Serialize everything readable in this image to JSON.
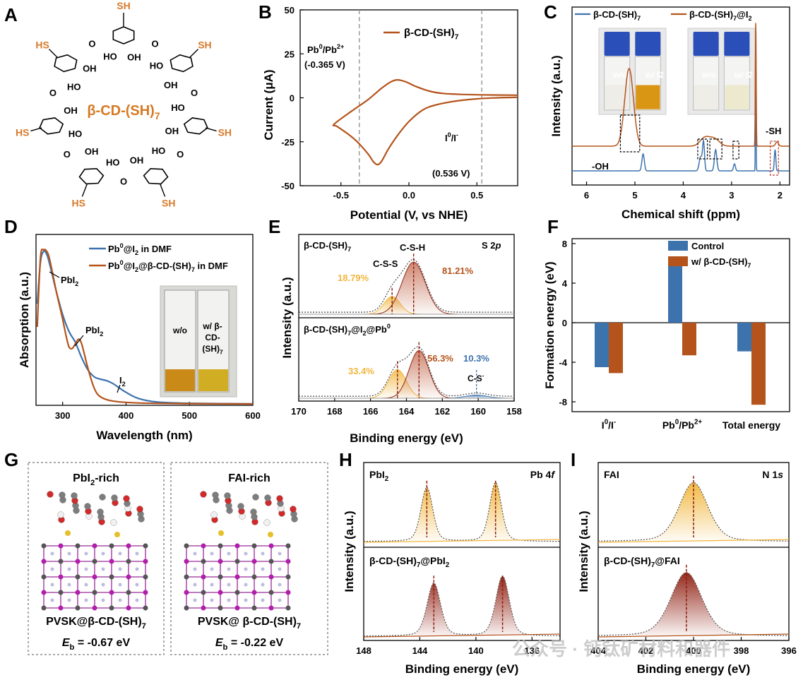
{
  "colors": {
    "orange": "#b4541c",
    "blue": "#3d73ad",
    "gold": "#f1b63d",
    "darkred": "#8e1d0f",
    "grey_dashed": "#9b9b9b",
    "sh_label": "#d97a2b",
    "mol_title": "#d77a24"
  },
  "panel_labels": [
    "A",
    "B",
    "C",
    "D",
    "E",
    "F",
    "G",
    "H",
    "I"
  ],
  "panelA": {
    "title": "β-CD-(SH)7",
    "title_main": "β-CD-(SH)",
    "title_sub": "7",
    "sh": "SH",
    "hs": "HS",
    "oh": "OH",
    "ho": "HO",
    "o": "O"
  },
  "chart_data": [
    {
      "id": "B",
      "type": "line",
      "xlabel": "Potential (V, vs NHE)",
      "ylabel": "Current (μA)",
      "xlim": [
        -0.8,
        0.8
      ],
      "ylim": [
        -50,
        50
      ],
      "xticks": [
        -0.5,
        0.0,
        0.5
      ],
      "yticks": [
        -50,
        -25,
        0,
        25,
        50
      ],
      "series": [
        {
          "name": "β-CD-(SH)7",
          "name_main": "β-CD-(SH)",
          "name_sub": "7",
          "color": "orange",
          "points": [
            [
              0.8,
              1.5
            ],
            [
              0.6,
              1.6
            ],
            [
              0.4,
              1.9
            ],
            [
              0.25,
              2.5
            ],
            [
              0.15,
              3.8
            ],
            [
              0.05,
              6.5
            ],
            [
              -0.02,
              9.0
            ],
            [
              -0.08,
              10.2
            ],
            [
              -0.13,
              9.2
            ],
            [
              -0.2,
              5.5
            ],
            [
              -0.3,
              -1.0
            ],
            [
              -0.42,
              -7.5
            ],
            [
              -0.55,
              -15.0
            ],
            [
              -0.53,
              -16.2
            ],
            [
              -0.45,
              -20.5
            ],
            [
              -0.38,
              -25.0
            ],
            [
              -0.3,
              -32.0
            ],
            [
              -0.26,
              -36.5
            ],
            [
              -0.23,
              -38.0
            ],
            [
              -0.2,
              -36.0
            ],
            [
              -0.15,
              -29.0
            ],
            [
              -0.08,
              -21.0
            ],
            [
              0.0,
              -13.5
            ],
            [
              0.1,
              -7.0
            ],
            [
              0.2,
              -4.0
            ],
            [
              0.35,
              -1.8
            ],
            [
              0.5,
              -0.6
            ],
            [
              0.65,
              0.0
            ],
            [
              0.8,
              0.3
            ]
          ]
        }
      ],
      "vlines": [
        -0.365,
        0.536
      ],
      "annotations": {
        "pb_line1": "Pb0/Pb2+",
        "pb_line2": "(-0.365 V)",
        "i_line1": "I0/I-",
        "i_line2": "(0.536 V)",
        "pb_base1": "Pb",
        "pb_sup1": "0",
        "pb_mid": "/Pb",
        "pb_sup2": "2+",
        "i_base1": "I",
        "i_sup1": "0",
        "i_mid": "/I",
        "i_sup2": "-"
      }
    },
    {
      "id": "C",
      "type": "line",
      "xlabel": "Chemical shift (ppm)",
      "ylabel": "Intensity (a.u.)",
      "xlim": [
        6.3,
        1.8
      ],
      "xreversed": true,
      "xticks": [
        6,
        5,
        4,
        3,
        2
      ],
      "series": [
        {
          "name": "β-CD-(SH)7",
          "name_main": "β-CD-(SH)",
          "name_sub": "7",
          "color": "blue",
          "offset": 0.0,
          "peaks": [
            [
              4.83,
              0.12,
              0.025
            ],
            [
              3.64,
              0.1,
              0.03
            ],
            [
              3.58,
              0.2,
              0.02
            ],
            [
              3.33,
              0.15,
              0.025
            ],
            [
              2.94,
              0.05,
              0.02
            ],
            [
              2.5,
              0.85,
              0.006
            ],
            [
              2.1,
              0.15,
              0.015
            ]
          ]
        },
        {
          "name": "β-CD-(SH)7@I2",
          "name_main": "β-CD-(SH)",
          "name_sub": "7",
          "name_tail": "@I",
          "name_sub2": "2",
          "color": "orange",
          "offset": 0.27,
          "peaks": [
            [
              5.12,
              0.55,
              0.09
            ],
            [
              3.55,
              0.06,
              0.1
            ],
            [
              3.35,
              0.05,
              0.1
            ],
            [
              2.5,
              0.9,
              0.008
            ],
            [
              2.06,
              0.03,
              0.03
            ]
          ]
        }
      ],
      "annotations": {
        "oh": "-OH",
        "sh": "-SH"
      },
      "photo_labels": [
        "w/o",
        "w/ I2"
      ]
    },
    {
      "id": "D",
      "type": "line",
      "xlabel": "Wavelength (nm)",
      "ylabel": "Absorption (a.u.)",
      "xlim": [
        258,
        600
      ],
      "ylim": [
        0,
        1
      ],
      "xticks": [
        300,
        400,
        500,
        600
      ],
      "series": [
        {
          "name": "Pb0@I2 in DMF",
          "color": "blue",
          "points": [
            [
              260,
              0.65
            ],
            [
              265,
              0.92
            ],
            [
              270,
              0.99
            ],
            [
              275,
              0.97
            ],
            [
              280,
              0.9
            ],
            [
              290,
              0.73
            ],
            [
              300,
              0.58
            ],
            [
              310,
              0.47
            ],
            [
              320,
              0.4
            ],
            [
              330,
              0.3
            ],
            [
              340,
              0.22
            ],
            [
              350,
              0.175
            ],
            [
              360,
              0.16
            ],
            [
              370,
              0.15
            ],
            [
              380,
              0.13
            ],
            [
              400,
              0.075
            ],
            [
              420,
              0.035
            ],
            [
              450,
              0.012
            ],
            [
              500,
              0.004
            ],
            [
              600,
              0.0
            ]
          ]
        },
        {
          "name": "Pb0@I2@β-CD-(SH)7 in DMF",
          "color": "orange",
          "points": [
            [
              260,
              0.5
            ],
            [
              265,
              0.95
            ],
            [
              270,
              1.0
            ],
            [
              275,
              0.99
            ],
            [
              280,
              0.93
            ],
            [
              290,
              0.73
            ],
            [
              300,
              0.55
            ],
            [
              305,
              0.45
            ],
            [
              310,
              0.37
            ],
            [
              315,
              0.36
            ],
            [
              320,
              0.39
            ],
            [
              325,
              0.42
            ],
            [
              330,
              0.39
            ],
            [
              340,
              0.23
            ],
            [
              350,
              0.1
            ],
            [
              360,
              0.045
            ],
            [
              380,
              0.018
            ],
            [
              420,
              0.006
            ],
            [
              500,
              0.002
            ],
            [
              600,
              0.0
            ]
          ]
        }
      ],
      "legend": [
        {
          "base": "Pb",
          "sup": "0",
          "mid": "@I",
          "sub": "2",
          "tail": " in DMF"
        },
        {
          "base": "Pb",
          "sup": "0",
          "mid": "@I",
          "sub": "2",
          "tail": "@β-CD-(SH)",
          "sub2": "7",
          "tail2": " in DMF"
        }
      ],
      "annotations": {
        "pbi2": "PbI",
        "pbi2_sub": "2",
        "i2": "I",
        "i2_sub": "2"
      },
      "photo_labels": [
        "w/o",
        "w/ β-",
        "CD-",
        "(SH)",
        "7"
      ]
    },
    {
      "id": "E",
      "type": "line",
      "xlabel": "Binding energy (eV)",
      "ylabel": "Intensity (a.u.)",
      "xlim": [
        170,
        158
      ],
      "xreversed": true,
      "xticks": [
        170,
        168,
        166,
        164,
        162,
        160,
        158
      ],
      "corner_label": "S 2",
      "corner_italic": "p",
      "subpanels": [
        {
          "title_main": "β-CD-(SH)",
          "title_sub": "7",
          "peaks": [
            {
              "name": "C-S-S",
              "center": 164.8,
              "amp": 0.28,
              "sigma": 0.45,
              "color": "gold",
              "percent": "18.79%"
            },
            {
              "name": "C-S-H",
              "center": 163.6,
              "amp": 0.82,
              "sigma": 0.65,
              "color": "darkred",
              "percent": "81.21%"
            }
          ]
        },
        {
          "title_main": "β-CD-(SH)",
          "title_sub": "7",
          "title_tail": "@I",
          "title_sub2": "2",
          "title_tail2": "@Pb",
          "title_sup": "0",
          "peaks": [
            {
              "name": "",
              "center": 164.5,
              "amp": 0.45,
              "sigma": 0.5,
              "color": "gold",
              "percent": "33.4%"
            },
            {
              "name": "",
              "center": 163.3,
              "amp": 0.75,
              "sigma": 0.55,
              "color": "darkred",
              "percent": "56.3%"
            },
            {
              "name": "C-S-",
              "center": 160.1,
              "amp": 0.05,
              "sigma": 0.6,
              "color": "blue",
              "percent": "10.3%"
            }
          ]
        }
      ],
      "peak_labels": {
        "css": "C-S-S",
        "csh": "C-S-H",
        "cs": "C-S",
        "cs_sup": "-"
      }
    },
    {
      "id": "F",
      "type": "bar",
      "ylabel": "Formation energy (eV)",
      "ylim": [
        -9,
        8.5
      ],
      "yticks": [
        -8,
        -4,
        0,
        4,
        8
      ],
      "categories": [
        "I0/I-",
        "Pb0/Pb2+",
        "Total energy"
      ],
      "category_parts": [
        {
          "base": "I",
          "sup": "0",
          "mid": "/I",
          "sup2": "-"
        },
        {
          "base": "Pb",
          "sup": "0",
          "mid": "/Pb",
          "sup2": "2+"
        },
        {
          "base": "Total energy"
        }
      ],
      "series": [
        {
          "name": "Control",
          "color": "blue",
          "values": [
            -4.5,
            6.2,
            -2.9
          ]
        },
        {
          "name": "w/ β-CD-(SH)7",
          "name_main": "w/ β-CD-(SH)",
          "name_sub": "7",
          "color": "orange",
          "values": [
            -5.1,
            -3.3,
            -8.3
          ]
        }
      ]
    },
    {
      "id": "H",
      "type": "line",
      "xlabel": "Binding energy (eV)",
      "ylabel": "Intensity (a.u.)",
      "xlim": [
        148,
        134
      ],
      "xreversed": true,
      "xticks": [
        148,
        144,
        140,
        136
      ],
      "corner_label": "Pb 4",
      "corner_italic": "f",
      "subpanels": [
        {
          "title_main": "PbI",
          "title_sub": "2",
          "color": "gold",
          "peaks": [
            [
              143.5,
              0.78,
              0.42
            ],
            [
              138.6,
              0.85,
              0.42
            ]
          ],
          "markers": [
            143.5,
            138.6
          ]
        },
        {
          "title_main": "β-CD-(SH)",
          "title_sub": "7",
          "title_tail": "@PbI",
          "title_sub2": "2",
          "color": "darkred",
          "peaks": [
            [
              143.0,
              0.68,
              0.48
            ],
            [
              138.1,
              0.77,
              0.48
            ]
          ],
          "markers": [
            143.0,
            138.1
          ]
        }
      ]
    },
    {
      "id": "I",
      "type": "line",
      "xlabel": "Binding energy (eV)",
      "ylabel": "Intensity (a.u.)",
      "xlim": [
        404,
        396
      ],
      "xreversed": true,
      "xticks": [
        404,
        402,
        400,
        398,
        396
      ],
      "corner_label": "N 1",
      "corner_italic": "s",
      "subpanels": [
        {
          "title_main": "FAI",
          "color": "gold",
          "peaks": [
            [
              400.0,
              0.85,
              0.6
            ]
          ],
          "markers": [
            400.0
          ]
        },
        {
          "title_main": "β-CD-(SH)",
          "title_sub": "7",
          "title_tail": "@FAI",
          "color": "darkred",
          "peaks": [
            [
              400.3,
              0.82,
              0.65
            ]
          ],
          "markers": [
            400.3
          ]
        }
      ]
    }
  ],
  "panelG": {
    "left": {
      "title_main": "PbI",
      "title_sub": "2",
      "title_tail": "-rich",
      "caption_main": "PVSK@β-CD-(SH)",
      "caption_sub": "7",
      "energy_label": "E",
      "energy_sub": "b",
      "energy_value": " = -0.67 eV"
    },
    "right": {
      "title_main": "FAI-rich",
      "caption_main": "PVSK@ β-CD-(SH)",
      "caption_sub": "7",
      "energy_label": "E",
      "energy_sub": "b",
      "energy_value": " = -0.22 eV"
    }
  },
  "watermark": "公众号 · 钙钛矿材料和器件"
}
